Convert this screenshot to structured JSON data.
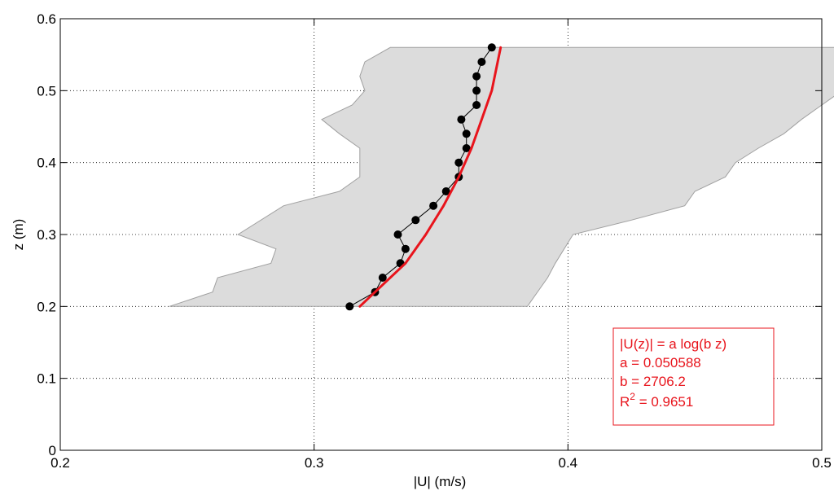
{
  "chart_data": {
    "type": "line",
    "xlabel": "|U| (m/s)",
    "ylabel": "z (m)",
    "xlim": [
      0.2,
      0.5
    ],
    "ylim": [
      0,
      0.6
    ],
    "xticks": [
      "0.2",
      "0.3",
      "0.4",
      "0.5"
    ],
    "yticks": [
      "0",
      "0.1",
      "0.2",
      "0.3",
      "0.4",
      "0.5",
      "0.6"
    ],
    "grid": true,
    "colors": {
      "band": "#dcdcdc",
      "band_edge": "#a0a0a0",
      "data": "#000000",
      "fit": "#e8141c"
    },
    "band": {
      "left": [
        [
          0.243,
          0.2
        ],
        [
          0.26,
          0.22
        ],
        [
          0.262,
          0.24
        ],
        [
          0.283,
          0.26
        ],
        [
          0.285,
          0.28
        ],
        [
          0.27,
          0.3
        ],
        [
          0.288,
          0.34
        ],
        [
          0.31,
          0.36
        ],
        [
          0.318,
          0.38
        ],
        [
          0.318,
          0.42
        ],
        [
          0.31,
          0.44
        ],
        [
          0.303,
          0.46
        ],
        [
          0.315,
          0.48
        ],
        [
          0.32,
          0.5
        ],
        [
          0.318,
          0.52
        ],
        [
          0.32,
          0.54
        ],
        [
          0.33,
          0.56
        ]
      ],
      "right": [
        [
          0.384,
          0.2
        ],
        [
          0.392,
          0.24
        ],
        [
          0.395,
          0.26
        ],
        [
          0.402,
          0.3
        ],
        [
          0.425,
          0.32
        ],
        [
          0.446,
          0.34
        ],
        [
          0.45,
          0.36
        ],
        [
          0.462,
          0.38
        ],
        [
          0.466,
          0.4
        ],
        [
          0.475,
          0.42
        ],
        [
          0.485,
          0.44
        ],
        [
          0.492,
          0.46
        ],
        [
          0.5,
          0.48
        ],
        [
          0.508,
          0.5
        ],
        [
          0.513,
          0.52
        ],
        [
          0.52,
          0.54
        ],
        [
          0.525,
          0.56
        ]
      ]
    },
    "series": [
      {
        "type": "line-markers",
        "points": [
          [
            0.314,
            0.2
          ],
          [
            0.324,
            0.22
          ],
          [
            0.327,
            0.24
          ],
          [
            0.334,
            0.26
          ],
          [
            0.336,
            0.28
          ],
          [
            0.333,
            0.3
          ],
          [
            0.34,
            0.32
          ],
          [
            0.347,
            0.34
          ],
          [
            0.352,
            0.36
          ],
          [
            0.357,
            0.38
          ],
          [
            0.357,
            0.4
          ],
          [
            0.36,
            0.42
          ],
          [
            0.36,
            0.44
          ],
          [
            0.358,
            0.46
          ],
          [
            0.364,
            0.48
          ],
          [
            0.364,
            0.5
          ],
          [
            0.364,
            0.52
          ],
          [
            0.366,
            0.54
          ],
          [
            0.37,
            0.56
          ]
        ]
      },
      {
        "type": "fit-line",
        "points": [
          [
            0.318,
            0.2
          ],
          [
            0.327,
            0.23
          ],
          [
            0.336,
            0.26
          ],
          [
            0.344,
            0.3
          ],
          [
            0.351,
            0.34
          ],
          [
            0.357,
            0.38
          ],
          [
            0.362,
            0.42
          ],
          [
            0.366,
            0.46
          ],
          [
            0.37,
            0.5
          ],
          [
            0.3735,
            0.56
          ]
        ]
      }
    ],
    "legend": {
      "position": "bottom-right",
      "lines": [
        "|U(z)| = a log(b z)",
        "a = 0.050588",
        "b = 2706.2",
        "R",
        "2",
        " = 0.9651"
      ]
    }
  }
}
